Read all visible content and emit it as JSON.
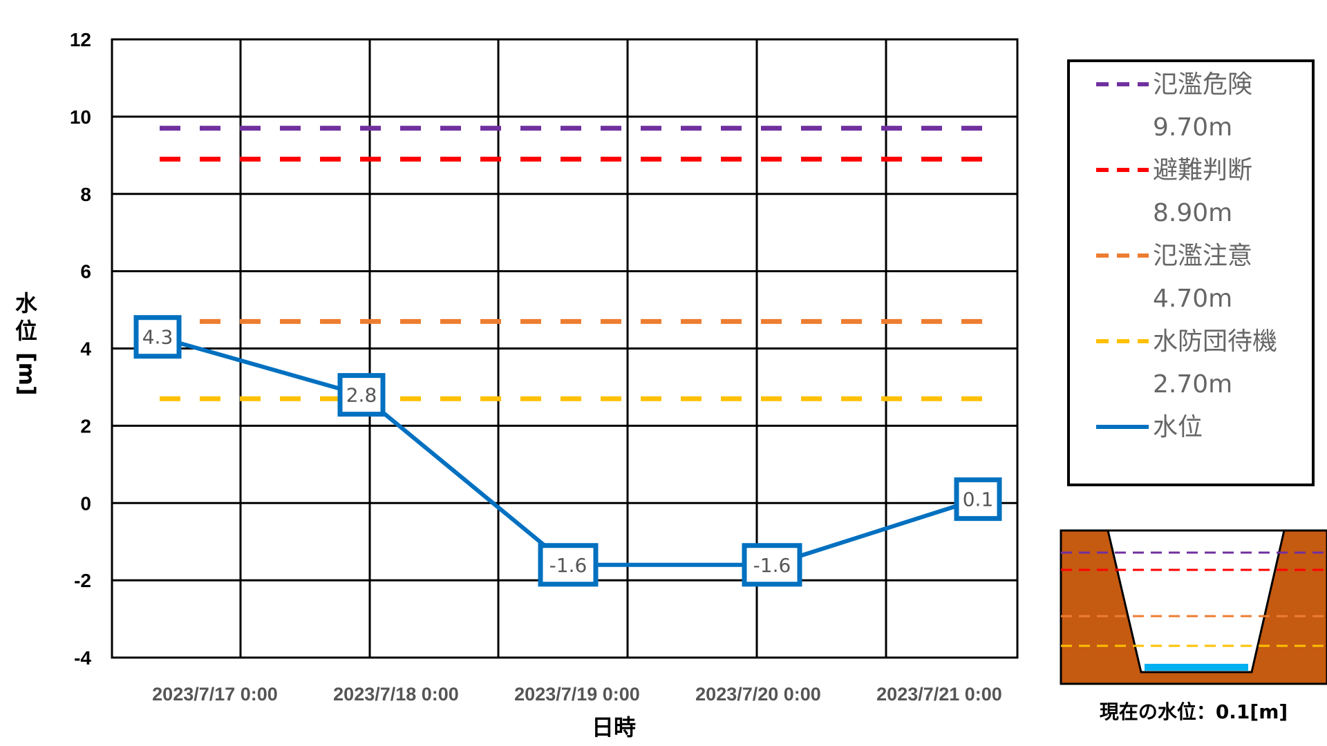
{
  "chart_data": {
    "type": "line",
    "x": [
      "2023/7/17 0:00",
      "2023/7/18 0:00",
      "2023/7/19 0:00",
      "2023/7/20 0:00",
      "2023/7/21 0:00"
    ],
    "xlabel": "日時",
    "ylabel": "水位 [m]",
    "ylim": [
      -4,
      12
    ],
    "yticks": [
      12,
      10,
      8,
      6,
      4,
      2,
      0,
      -2,
      -4
    ],
    "grid": true,
    "legend_position": "right",
    "thresholds": [
      {
        "name": "氾濫危険",
        "value_label": "9.70m",
        "value": 9.7,
        "color": "#7030A0"
      },
      {
        "name": "避難判断",
        "value_label": "8.90m",
        "value": 8.9,
        "color": "#FF0000"
      },
      {
        "name": "氾濫注意",
        "value_label": "4.70m",
        "value": 4.7,
        "color": "#ED7D31"
      },
      {
        "name": "水防団待機",
        "value_label": "2.70m",
        "value": 2.7,
        "color": "#FFC000"
      }
    ],
    "series": [
      {
        "name": "水位",
        "color": "#0070C0",
        "points": [
          {
            "x": "2023/7/17 0:00",
            "y": 4.3,
            "label": "4.3"
          },
          {
            "x": "2023/7/18 0:00",
            "y": 2.8,
            "label": "2.8"
          },
          {
            "x": "2023/7/19 0:00",
            "y": -1.6,
            "label": "-1.6"
          },
          {
            "x": "2023/7/20 0:00",
            "y": -1.6,
            "label": "-1.6"
          },
          {
            "x": "2023/7/21 0:00",
            "y": 0.1,
            "label": "0.1"
          }
        ]
      }
    ]
  },
  "diagram": {
    "caption": "現在の水位：0.1[m]",
    "bank_color": "#C55A11",
    "water_color": "#00B0F0"
  }
}
